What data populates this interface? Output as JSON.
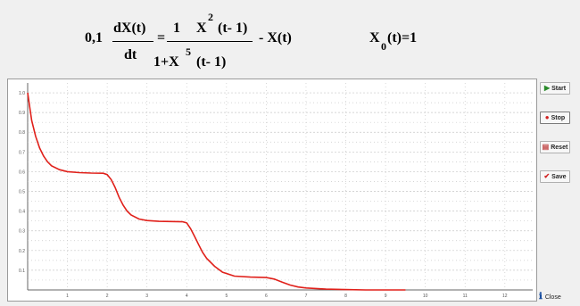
{
  "equation": {
    "coef": "0,1",
    "numerator_left": "dX(t)",
    "denominator_left": "dt",
    "equals": "=",
    "one": "1",
    "x": "X",
    "exp_top": "2",
    "lag_top": "(t- 1)",
    "denom_prefix": "1+X",
    "exp_bottom": "5",
    "lag_bottom": "(t- 1)",
    "minus_term": "-  X(t)",
    "ic_x": "X",
    "ic_sub": "0",
    "ic_rest": "(t)=1"
  },
  "buttons": {
    "start": "Start",
    "stop": "Stop",
    "reset": "Reset",
    "save": "Save",
    "close": "Close"
  },
  "icons": {
    "start": "play-icon",
    "stop": "stop-icon",
    "reset": "reset-icon",
    "save": "check-icon",
    "close": "info-icon"
  },
  "colors": {
    "curve": "#e0201a",
    "grid": "#c8c8c8",
    "background": "#f0f0f0"
  },
  "chart_data": {
    "type": "line",
    "x_ticks": [
      "1",
      "2",
      "3",
      "4",
      "5",
      "6",
      "7",
      "8",
      "9",
      "10",
      "11",
      "12"
    ],
    "y_ticks": [
      "0.1",
      "0.2",
      "0.3",
      "0.4",
      "0.5",
      "0.6",
      "0.7",
      "0.8",
      "0.9",
      "1.0"
    ],
    "xlim": [
      0,
      12.7
    ],
    "ylim": [
      0,
      1.05
    ],
    "grid": true,
    "series": [
      {
        "x": [
          0,
          0.1,
          0.2,
          0.3,
          0.4,
          0.5,
          0.6,
          0.8,
          1.0,
          1.3,
          1.6,
          1.9,
          2.0,
          2.1,
          2.2,
          2.3,
          2.4,
          2.5,
          2.6,
          2.8,
          3.0,
          3.3,
          3.6,
          3.9,
          4.0,
          4.1,
          4.2,
          4.3,
          4.4,
          4.5,
          4.7,
          4.9,
          5.2,
          5.6,
          6.0,
          6.2,
          6.4,
          6.6,
          6.8,
          7.0,
          7.5,
          8.0,
          8.5,
          9.0,
          9.5
        ],
        "y": [
          1.0,
          0.86,
          0.78,
          0.72,
          0.68,
          0.65,
          0.63,
          0.61,
          0.6,
          0.595,
          0.593,
          0.592,
          0.585,
          0.56,
          0.52,
          0.47,
          0.43,
          0.4,
          0.38,
          0.36,
          0.352,
          0.348,
          0.347,
          0.346,
          0.34,
          0.31,
          0.27,
          0.23,
          0.19,
          0.16,
          0.12,
          0.09,
          0.07,
          0.065,
          0.063,
          0.055,
          0.04,
          0.025,
          0.015,
          0.01,
          0.004,
          0.002,
          0.0,
          0.0,
          0.0
        ]
      }
    ]
  }
}
